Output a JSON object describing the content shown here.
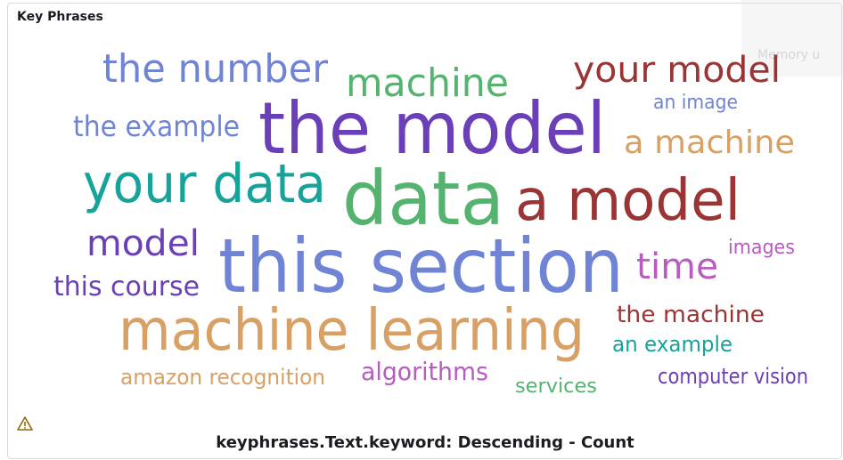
{
  "panel": {
    "title": "Key Phrases",
    "words": [
      {
        "text": "the number",
        "color": "#6f84d4"
      },
      {
        "text": "machine",
        "color": "#54b46f"
      },
      {
        "text": "your model",
        "color": "#9b3434"
      },
      {
        "text": "the model",
        "color": "#6a3fb8"
      },
      {
        "text": "an image",
        "color": "#6f84d4"
      },
      {
        "text": "the example",
        "color": "#6f84d4"
      },
      {
        "text": "a machine",
        "color": "#d9a066"
      },
      {
        "text": "your data",
        "color": "#17a39a"
      },
      {
        "text": "data",
        "color": "#54b46f"
      },
      {
        "text": "a model",
        "color": "#9b3434"
      },
      {
        "text": "model",
        "color": "#6a3fb8"
      },
      {
        "text": "images",
        "color": "#b85cc0"
      },
      {
        "text": "this section",
        "color": "#6f84d4"
      },
      {
        "text": "time",
        "color": "#b85cc0"
      },
      {
        "text": "this course",
        "color": "#6a3fb8"
      },
      {
        "text": "machine learning",
        "color": "#d9a066"
      },
      {
        "text": "the machine",
        "color": "#9b3434"
      },
      {
        "text": "an example",
        "color": "#17a39a"
      },
      {
        "text": "amazon recognition",
        "color": "#d9a066"
      },
      {
        "text": "algorithms",
        "color": "#b85cc0"
      },
      {
        "text": "computer vision",
        "color": "#6a3fb8"
      },
      {
        "text": "services",
        "color": "#54b46f"
      }
    ],
    "footer": "keyphrases.Text.keyword: Descending - Count"
  },
  "overlay": {
    "label": "Memory u"
  }
}
